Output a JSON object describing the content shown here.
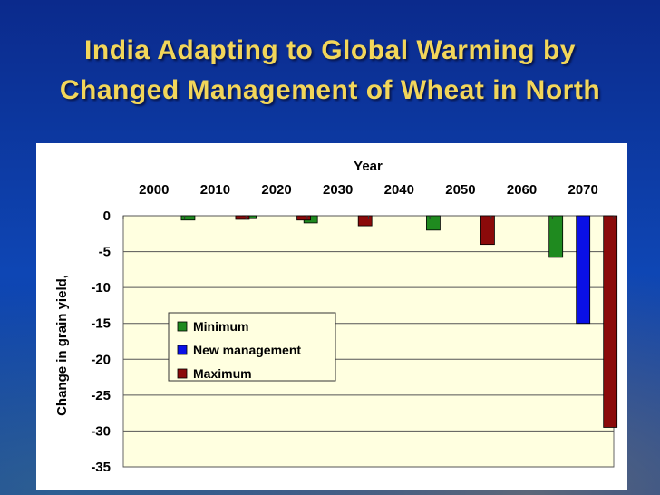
{
  "slide_title_line1": "India Adapting to Global Warming by",
  "slide_title_line2": "Changed Management of Wheat in North",
  "chart_data": {
    "type": "bar",
    "title": "",
    "xlabel": "Year",
    "ylabel": "Change in grain yield,",
    "categories": [
      "2000",
      "2010",
      "2020",
      "2030",
      "2040",
      "2050",
      "2060",
      "2070"
    ],
    "series": [
      {
        "name": "Minimum",
        "color": "#1f8a1f",
        "values": [
          0,
          -0.6,
          -0.4,
          -1.0,
          0,
          -2.0,
          0,
          -5.8
        ]
      },
      {
        "name": "New management",
        "color": "#0a10e6",
        "values": [
          0,
          0,
          0,
          0,
          0,
          0,
          0,
          -15.0
        ]
      },
      {
        "name": "Maximum",
        "color": "#8b0a0a",
        "values": [
          0,
          -0.5,
          -0.6,
          -1.4,
          0,
          -4.0,
          0,
          -29.5
        ]
      }
    ],
    "ylim": [
      -35,
      0
    ],
    "yticks": [
      0,
      -5,
      -10,
      -15,
      -20,
      -25,
      -30,
      -35
    ],
    "grid": true,
    "plot_background": "#ffffe0",
    "legend_position": "center-left"
  }
}
